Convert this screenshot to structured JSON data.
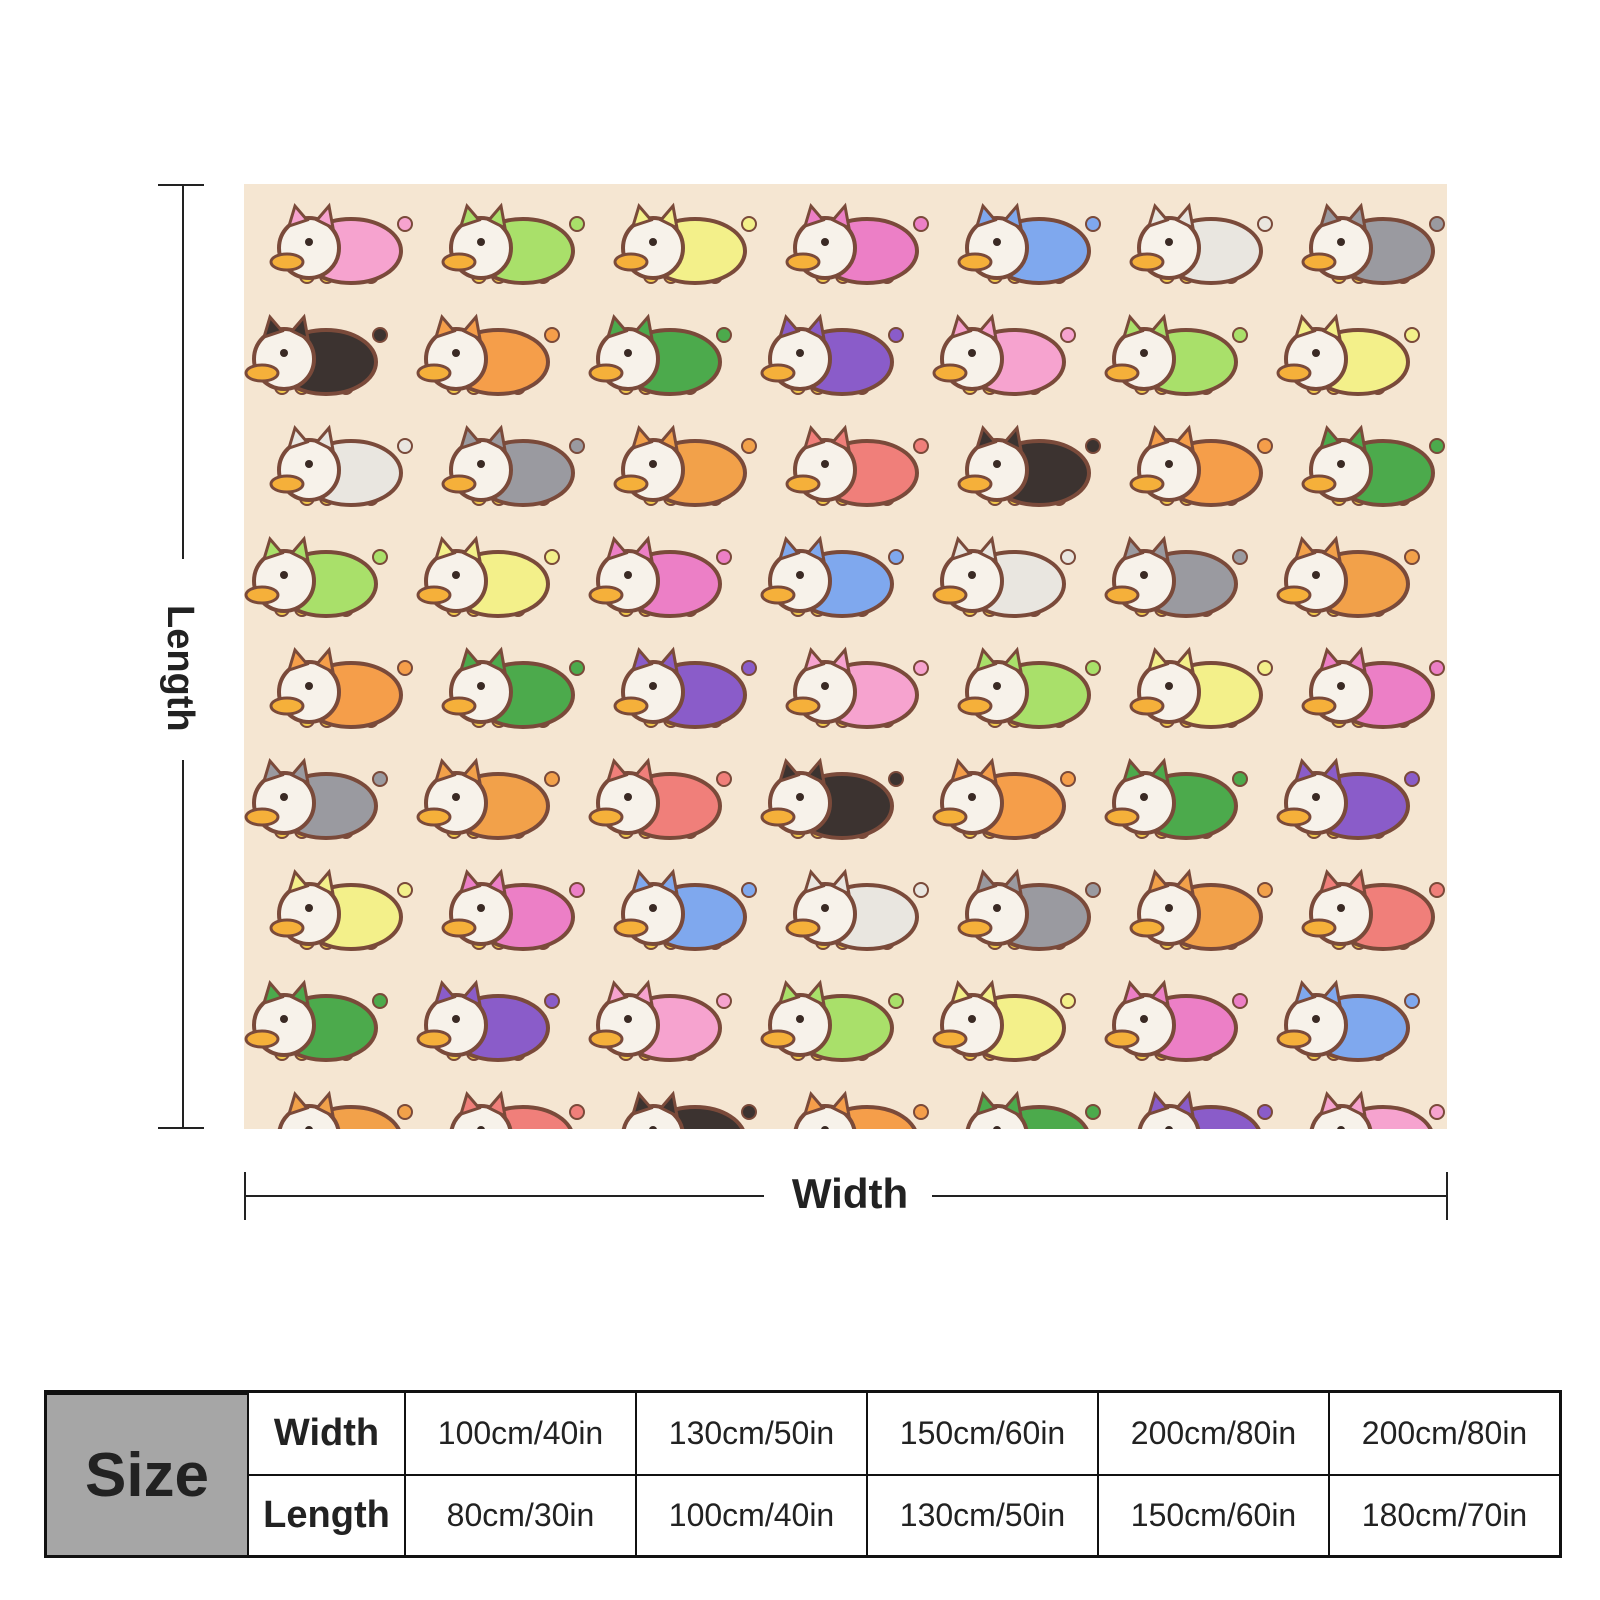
{
  "dimensions": {
    "length_label": "Length",
    "width_label": "Width"
  },
  "blanket": {
    "background_color": "#f5e6d2",
    "outline_color": "#7a4a3a",
    "palette": [
      "#8a5cc9",
      "#f07f7a",
      "#7fa8ee",
      "#f6a3cf",
      "#3c3330",
      "#e9e6e0",
      "#a9e06a",
      "#f59e4a",
      "#9a9aa0",
      "#f3f08a",
      "#4caa4c",
      "#f2a14a",
      "#ec7fc6"
    ]
  },
  "size_table": {
    "header": "Size",
    "width_label": "Width",
    "length_label": "Length",
    "widths": [
      "100cm/40in",
      "130cm/50in",
      "150cm/60in",
      "200cm/80in",
      "200cm/80in"
    ],
    "lengths": [
      "80cm/30in",
      "100cm/40in",
      "130cm/50in",
      "150cm/60in",
      "180cm/70in"
    ]
  }
}
